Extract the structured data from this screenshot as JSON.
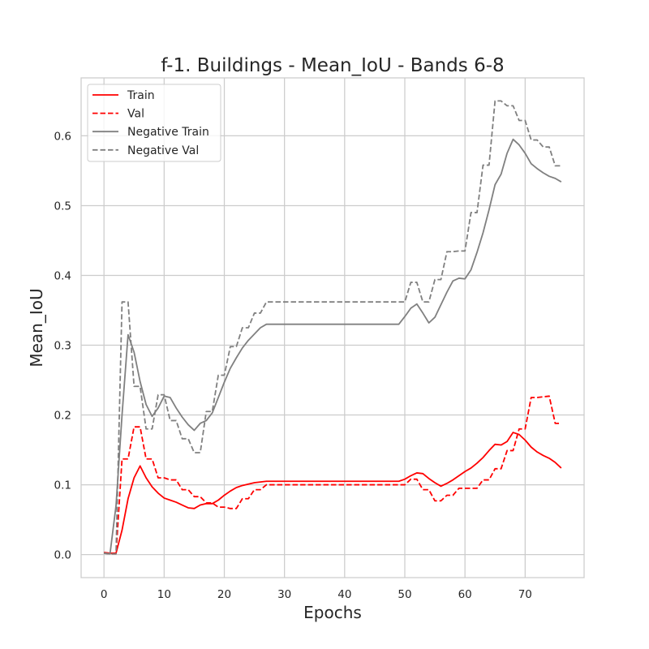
{
  "chart_data": {
    "type": "line",
    "title": "f-1. Buildings - Mean_IoU - Bands 6-8",
    "xlabel": "Epochs",
    "ylabel": "Mean_IoU",
    "xlim": [
      -3.8,
      79.8
    ],
    "ylim": [
      -0.033,
      0.683
    ],
    "xticks": [
      0,
      10,
      20,
      30,
      40,
      50,
      60,
      70
    ],
    "yticks": [
      0.0,
      0.1,
      0.2,
      0.3,
      0.4,
      0.5,
      0.6
    ],
    "ytick_labels": [
      "0.0",
      "0.1",
      "0.2",
      "0.3",
      "0.4",
      "0.5",
      "0.6"
    ],
    "grid": true,
    "legend_position": "top-left",
    "series": [
      {
        "name": "Train",
        "color": "#ff0000",
        "style": "solid",
        "points": [
          [
            0,
            0.003
          ],
          [
            1,
            0.002
          ],
          [
            2,
            0.002
          ],
          [
            3,
            0.035
          ],
          [
            4,
            0.08
          ],
          [
            5,
            0.11
          ],
          [
            6,
            0.127
          ],
          [
            7,
            0.11
          ],
          [
            8,
            0.097
          ],
          [
            9,
            0.088
          ],
          [
            10,
            0.081
          ],
          [
            11,
            0.078
          ],
          [
            12,
            0.075
          ],
          [
            13,
            0.071
          ],
          [
            14,
            0.067
          ],
          [
            15,
            0.066
          ],
          [
            16,
            0.071
          ],
          [
            17,
            0.073
          ],
          [
            18,
            0.073
          ],
          [
            19,
            0.078
          ],
          [
            20,
            0.085
          ],
          [
            21,
            0.091
          ],
          [
            22,
            0.096
          ],
          [
            23,
            0.099
          ],
          [
            24,
            0.101
          ],
          [
            25,
            0.103
          ],
          [
            26,
            0.104
          ],
          [
            27,
            0.105
          ],
          [
            30,
            0.105
          ],
          [
            35,
            0.105
          ],
          [
            40,
            0.105
          ],
          [
            45,
            0.105
          ],
          [
            49,
            0.105
          ],
          [
            50,
            0.108
          ],
          [
            51,
            0.113
          ],
          [
            52,
            0.117
          ],
          [
            53,
            0.116
          ],
          [
            54,
            0.109
          ],
          [
            55,
            0.103
          ],
          [
            56,
            0.098
          ],
          [
            57,
            0.102
          ],
          [
            58,
            0.107
          ],
          [
            59,
            0.113
          ],
          [
            60,
            0.119
          ],
          [
            61,
            0.124
          ],
          [
            62,
            0.131
          ],
          [
            63,
            0.139
          ],
          [
            64,
            0.149
          ],
          [
            65,
            0.158
          ],
          [
            66,
            0.157
          ],
          [
            67,
            0.162
          ],
          [
            68,
            0.175
          ],
          [
            69,
            0.172
          ],
          [
            70,
            0.164
          ],
          [
            71,
            0.154
          ],
          [
            72,
            0.147
          ],
          [
            73,
            0.142
          ],
          [
            74,
            0.138
          ],
          [
            75,
            0.132
          ],
          [
            76,
            0.124
          ]
        ]
      },
      {
        "name": "Val",
        "color": "#ff0000",
        "style": "dashed",
        "points": [
          [
            0,
            0.002
          ],
          [
            1,
            0.001
          ],
          [
            2,
            0.001
          ],
          [
            3,
            0.137
          ],
          [
            4,
            0.137
          ],
          [
            5,
            0.183
          ],
          [
            6,
            0.183
          ],
          [
            7,
            0.137
          ],
          [
            8,
            0.137
          ],
          [
            9,
            0.11
          ],
          [
            10,
            0.11
          ],
          [
            11,
            0.107
          ],
          [
            12,
            0.107
          ],
          [
            13,
            0.093
          ],
          [
            14,
            0.093
          ],
          [
            15,
            0.083
          ],
          [
            16,
            0.083
          ],
          [
            17,
            0.074
          ],
          [
            18,
            0.074
          ],
          [
            19,
            0.068
          ],
          [
            20,
            0.068
          ],
          [
            21,
            0.066
          ],
          [
            22,
            0.066
          ],
          [
            23,
            0.08
          ],
          [
            24,
            0.08
          ],
          [
            25,
            0.093
          ],
          [
            26,
            0.093
          ],
          [
            27,
            0.1
          ],
          [
            30,
            0.1
          ],
          [
            35,
            0.1
          ],
          [
            40,
            0.1
          ],
          [
            45,
            0.1
          ],
          [
            49,
            0.1
          ],
          [
            50,
            0.1
          ],
          [
            51,
            0.108
          ],
          [
            52,
            0.108
          ],
          [
            53,
            0.093
          ],
          [
            54,
            0.093
          ],
          [
            55,
            0.077
          ],
          [
            56,
            0.077
          ],
          [
            57,
            0.085
          ],
          [
            58,
            0.085
          ],
          [
            59,
            0.095
          ],
          [
            60,
            0.095
          ],
          [
            61,
            0.095
          ],
          [
            62,
            0.095
          ],
          [
            63,
            0.107
          ],
          [
            64,
            0.107
          ],
          [
            65,
            0.123
          ],
          [
            66,
            0.123
          ],
          [
            67,
            0.149
          ],
          [
            68,
            0.149
          ],
          [
            69,
            0.18
          ],
          [
            70,
            0.18
          ],
          [
            71,
            0.225
          ],
          [
            72,
            0.225
          ],
          [
            73,
            0.226
          ],
          [
            74,
            0.227
          ],
          [
            75,
            0.188
          ],
          [
            76,
            0.188
          ]
        ]
      },
      {
        "name": "Negative Train",
        "color": "#808080",
        "style": "solid",
        "points": [
          [
            0,
            0.002
          ],
          [
            1,
            0.001
          ],
          [
            2,
            0.07
          ],
          [
            3,
            0.2
          ],
          [
            4,
            0.315
          ],
          [
            5,
            0.29
          ],
          [
            6,
            0.248
          ],
          [
            7,
            0.215
          ],
          [
            8,
            0.198
          ],
          [
            9,
            0.21
          ],
          [
            10,
            0.227
          ],
          [
            11,
            0.225
          ],
          [
            12,
            0.21
          ],
          [
            13,
            0.197
          ],
          [
            14,
            0.186
          ],
          [
            15,
            0.178
          ],
          [
            16,
            0.188
          ],
          [
            17,
            0.192
          ],
          [
            18,
            0.203
          ],
          [
            19,
            0.225
          ],
          [
            20,
            0.247
          ],
          [
            21,
            0.267
          ],
          [
            22,
            0.282
          ],
          [
            23,
            0.296
          ],
          [
            24,
            0.307
          ],
          [
            25,
            0.316
          ],
          [
            26,
            0.325
          ],
          [
            27,
            0.33
          ],
          [
            30,
            0.33
          ],
          [
            35,
            0.33
          ],
          [
            40,
            0.33
          ],
          [
            45,
            0.33
          ],
          [
            49,
            0.33
          ],
          [
            50,
            0.341
          ],
          [
            51,
            0.353
          ],
          [
            52,
            0.359
          ],
          [
            53,
            0.346
          ],
          [
            54,
            0.332
          ],
          [
            55,
            0.34
          ],
          [
            56,
            0.358
          ],
          [
            57,
            0.376
          ],
          [
            58,
            0.392
          ],
          [
            59,
            0.396
          ],
          [
            60,
            0.395
          ],
          [
            61,
            0.408
          ],
          [
            62,
            0.433
          ],
          [
            63,
            0.461
          ],
          [
            64,
            0.494
          ],
          [
            65,
            0.53
          ],
          [
            66,
            0.545
          ],
          [
            67,
            0.575
          ],
          [
            68,
            0.595
          ],
          [
            69,
            0.587
          ],
          [
            70,
            0.575
          ],
          [
            71,
            0.56
          ],
          [
            72,
            0.553
          ],
          [
            73,
            0.547
          ],
          [
            74,
            0.542
          ],
          [
            75,
            0.539
          ],
          [
            76,
            0.534
          ]
        ]
      },
      {
        "name": "Negative Val",
        "color": "#808080",
        "style": "dashed",
        "points": [
          [
            0,
            0.002
          ],
          [
            1,
            0.001
          ],
          [
            2,
            0.001
          ],
          [
            3,
            0.362
          ],
          [
            4,
            0.362
          ],
          [
            5,
            0.241
          ],
          [
            6,
            0.241
          ],
          [
            7,
            0.18
          ],
          [
            8,
            0.18
          ],
          [
            9,
            0.229
          ],
          [
            10,
            0.229
          ],
          [
            11,
            0.192
          ],
          [
            12,
            0.192
          ],
          [
            13,
            0.166
          ],
          [
            14,
            0.166
          ],
          [
            15,
            0.146
          ],
          [
            16,
            0.146
          ],
          [
            17,
            0.205
          ],
          [
            18,
            0.205
          ],
          [
            19,
            0.257
          ],
          [
            20,
            0.257
          ],
          [
            21,
            0.298
          ],
          [
            22,
            0.298
          ],
          [
            23,
            0.325
          ],
          [
            24,
            0.325
          ],
          [
            25,
            0.346
          ],
          [
            26,
            0.346
          ],
          [
            27,
            0.362
          ],
          [
            30,
            0.362
          ],
          [
            35,
            0.362
          ],
          [
            40,
            0.362
          ],
          [
            45,
            0.362
          ],
          [
            49,
            0.362
          ],
          [
            50,
            0.362
          ],
          [
            51,
            0.39
          ],
          [
            52,
            0.39
          ],
          [
            53,
            0.362
          ],
          [
            54,
            0.362
          ],
          [
            55,
            0.394
          ],
          [
            56,
            0.394
          ],
          [
            57,
            0.434
          ],
          [
            58,
            0.434
          ],
          [
            59,
            0.435
          ],
          [
            60,
            0.435
          ],
          [
            61,
            0.49
          ],
          [
            62,
            0.49
          ],
          [
            63,
            0.558
          ],
          [
            64,
            0.558
          ],
          [
            65,
            0.65
          ],
          [
            66,
            0.65
          ],
          [
            67,
            0.643
          ],
          [
            68,
            0.643
          ],
          [
            69,
            0.622
          ],
          [
            70,
            0.622
          ],
          [
            71,
            0.594
          ],
          [
            72,
            0.594
          ],
          [
            73,
            0.584
          ],
          [
            74,
            0.584
          ],
          [
            75,
            0.557
          ],
          [
            76,
            0.557
          ]
        ]
      }
    ]
  }
}
